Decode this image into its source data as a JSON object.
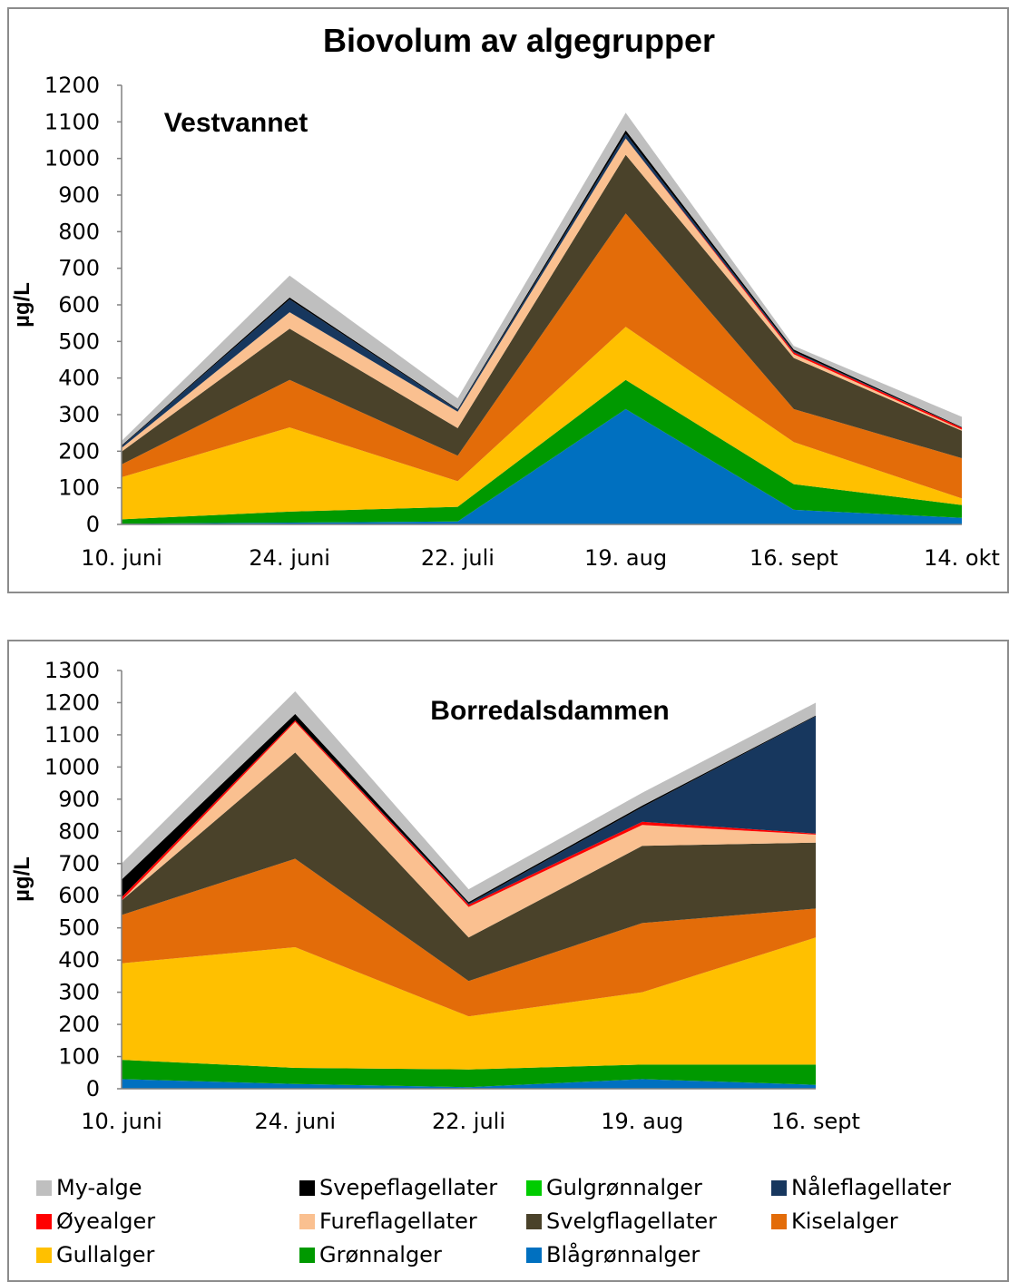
{
  "title": "Biovolum av algegrupper",
  "chart_data": [
    {
      "type": "area",
      "stacked": true,
      "title": "Vestvannet",
      "xlabel": "",
      "ylabel": "µg/L",
      "ylim": [
        0,
        1200
      ],
      "yticks": [
        0,
        100,
        200,
        300,
        400,
        500,
        600,
        700,
        800,
        900,
        1000,
        1100,
        1200
      ],
      "categories": [
        "10. juni",
        "24. juni",
        "22. juli",
        "19. aug",
        "16. sept",
        "14. okt"
      ],
      "series": [
        {
          "name": "Blågrønnalger",
          "color": "#0070c0",
          "values": [
            2,
            5,
            8,
            315,
            40,
            18
          ]
        },
        {
          "name": "Grønnalger",
          "color": "#009900",
          "values": [
            12,
            30,
            40,
            80,
            70,
            35
          ]
        },
        {
          "name": "Gullalger",
          "color": "#ffc000",
          "values": [
            115,
            230,
            70,
            145,
            115,
            18
          ]
        },
        {
          "name": "Kiselalger",
          "color": "#e36c09",
          "values": [
            35,
            130,
            70,
            310,
            90,
            110
          ]
        },
        {
          "name": "Svelgflagellater",
          "color": "#4a422a",
          "values": [
            35,
            140,
            75,
            160,
            140,
            75
          ]
        },
        {
          "name": "Fureflagellater",
          "color": "#fac090",
          "values": [
            10,
            45,
            45,
            45,
            10,
            3
          ]
        },
        {
          "name": "Øyealger",
          "color": "#ff0000",
          "values": [
            0,
            0,
            0,
            0,
            5,
            5
          ]
        },
        {
          "name": "Nåleflagellater",
          "color": "#17375e",
          "values": [
            5,
            35,
            5,
            12,
            3,
            0
          ]
        },
        {
          "name": "Gulgrønnalger",
          "color": "#00cc00",
          "values": [
            0,
            0,
            0,
            0,
            0,
            0
          ]
        },
        {
          "name": "Svepeflagellater",
          "color": "#000000",
          "values": [
            2,
            5,
            2,
            10,
            5,
            2
          ]
        },
        {
          "name": "My-alge",
          "color": "#bfbfbf",
          "values": [
            12,
            60,
            30,
            48,
            10,
            28
          ]
        }
      ]
    },
    {
      "type": "area",
      "stacked": true,
      "title": "Borredalsdammen",
      "xlabel": "",
      "ylabel": "µg/L",
      "ylim": [
        0,
        1300
      ],
      "yticks": [
        0,
        100,
        200,
        300,
        400,
        500,
        600,
        700,
        800,
        900,
        1000,
        1100,
        1200,
        1300
      ],
      "categories": [
        "10. juni",
        "24. juni",
        "22. juli",
        "19. aug",
        "16. sept"
      ],
      "series": [
        {
          "name": "Blågrønnalger",
          "color": "#0070c0",
          "values": [
            30,
            15,
            5,
            30,
            12
          ]
        },
        {
          "name": "Grønnalger",
          "color": "#009900",
          "values": [
            60,
            50,
            55,
            45,
            63
          ]
        },
        {
          "name": "Gullalger",
          "color": "#ffc000",
          "values": [
            300,
            375,
            165,
            225,
            395
          ]
        },
        {
          "name": "Kiselalger",
          "color": "#e36c09",
          "values": [
            150,
            275,
            110,
            215,
            90
          ]
        },
        {
          "name": "Svelgflagellater",
          "color": "#4a422a",
          "values": [
            45,
            330,
            135,
            240,
            205
          ]
        },
        {
          "name": "Fureflagellater",
          "color": "#fac090",
          "values": [
            0,
            95,
            95,
            65,
            25
          ]
        },
        {
          "name": "Øyealger",
          "color": "#ff0000",
          "values": [
            10,
            5,
            7,
            10,
            3
          ]
        },
        {
          "name": "Nåleflagellater",
          "color": "#17375e",
          "values": [
            0,
            0,
            3,
            45,
            365
          ]
        },
        {
          "name": "Gulgrønnalger",
          "color": "#00cc00",
          "values": [
            0,
            0,
            0,
            0,
            0
          ]
        },
        {
          "name": "Svepeflagellater",
          "color": "#000000",
          "values": [
            55,
            20,
            5,
            5,
            2
          ]
        },
        {
          "name": "My-alge",
          "color": "#bfbfbf",
          "values": [
            50,
            70,
            40,
            40,
            40
          ]
        }
      ]
    }
  ],
  "legend": [
    {
      "name": "My-alge",
      "color": "#bfbfbf"
    },
    {
      "name": "Svepeflagellater",
      "color": "#000000"
    },
    {
      "name": "Gulgrønnalger",
      "color": "#00cc00"
    },
    {
      "name": "Nåleflagellater",
      "color": "#17375e"
    },
    {
      "name": "Øyealger",
      "color": "#ff0000"
    },
    {
      "name": "Fureflagellater",
      "color": "#fac090"
    },
    {
      "name": "Svelgflagellater",
      "color": "#4a422a"
    },
    {
      "name": "Kiselalger",
      "color": "#e36c09"
    },
    {
      "name": "Gullalger",
      "color": "#ffc000"
    },
    {
      "name": "Grønnalger",
      "color": "#009900"
    },
    {
      "name": "Blågrønnalger",
      "color": "#0070c0"
    }
  ]
}
